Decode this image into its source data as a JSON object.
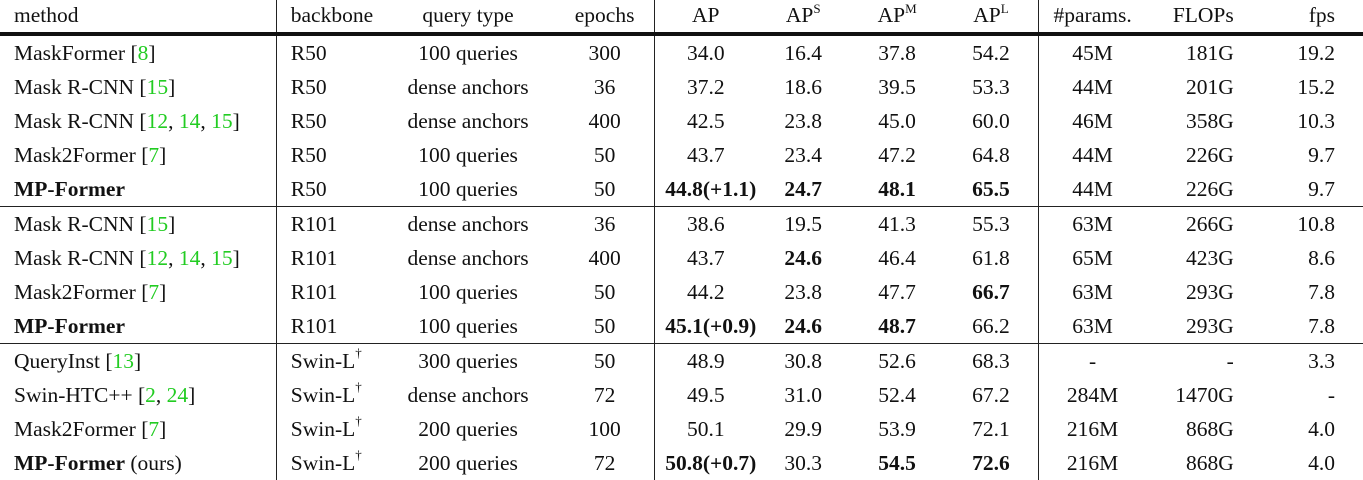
{
  "table": {
    "columns": [
      "method",
      "backbone",
      "query type",
      "epochs",
      "AP",
      "AP^S",
      "AP^M",
      "AP^L",
      "#params.",
      "FLOPs",
      "fps"
    ],
    "header": {
      "method": "method",
      "backbone": "backbone",
      "query_type": "query type",
      "epochs": "epochs",
      "ap": "AP",
      "ap_base": "AP",
      "aps_sup": "S",
      "apm_sup": "M",
      "apl_sup": "L",
      "params": "#params.",
      "flops": "FLOPs",
      "fps": "fps"
    },
    "citation_color": "#22cc22",
    "rows": [
      {
        "name": "MaskFormer",
        "cite_pre": " [",
        "cites": [
          "8"
        ],
        "cite_post": "]",
        "suffix": "",
        "bold_name": false,
        "backbone": "R50",
        "dagger": false,
        "query": "100 queries",
        "epochs": "300",
        "ap": "34.0",
        "ap_bold": false,
        "aps": "16.4",
        "aps_bold": false,
        "apm": "37.8",
        "apm_bold": false,
        "apl": "54.2",
        "apl_bold": false,
        "params": "45M",
        "flops": "181G",
        "fps": "19.2"
      },
      {
        "name": "Mask R-CNN",
        "cite_pre": " [",
        "cites": [
          "15"
        ],
        "cite_post": "]",
        "suffix": "",
        "bold_name": false,
        "backbone": "R50",
        "dagger": false,
        "query": "dense anchors",
        "epochs": "36",
        "ap": "37.2",
        "ap_bold": false,
        "aps": "18.6",
        "aps_bold": false,
        "apm": "39.5",
        "apm_bold": false,
        "apl": "53.3",
        "apl_bold": false,
        "params": "44M",
        "flops": "201G",
        "fps": "15.2"
      },
      {
        "name": "Mask R-CNN",
        "cite_pre": " [",
        "cites": [
          "12",
          "14",
          "15"
        ],
        "cite_post": "]",
        "suffix": "",
        "bold_name": false,
        "backbone": "R50",
        "dagger": false,
        "query": "dense anchors",
        "epochs": "400",
        "ap": "42.5",
        "ap_bold": false,
        "aps": "23.8",
        "aps_bold": false,
        "apm": "45.0",
        "apm_bold": false,
        "apl": "60.0",
        "apl_bold": false,
        "params": "46M",
        "flops": "358G",
        "fps": "10.3"
      },
      {
        "name": "Mask2Former",
        "cite_pre": " [",
        "cites": [
          "7"
        ],
        "cite_post": "]",
        "suffix": "",
        "bold_name": false,
        "backbone": "R50",
        "dagger": false,
        "query": "100 queries",
        "epochs": "50",
        "ap": "43.7",
        "ap_bold": false,
        "aps": "23.4",
        "aps_bold": false,
        "apm": "47.2",
        "apm_bold": false,
        "apl": "64.8",
        "apl_bold": false,
        "params": "44M",
        "flops": "226G",
        "fps": "9.7"
      },
      {
        "name": "MP-Former",
        "cite_pre": "",
        "cites": [],
        "cite_post": "",
        "suffix": "",
        "bold_name": true,
        "backbone": "R50",
        "dagger": false,
        "query": "100 queries",
        "epochs": "50",
        "ap": "44.8(+1.1)",
        "ap_bold": true,
        "aps": "24.7",
        "aps_bold": true,
        "apm": "48.1",
        "apm_bold": true,
        "apl": "65.5",
        "apl_bold": true,
        "params": "44M",
        "flops": "226G",
        "fps": "9.7",
        "group_end": true
      },
      {
        "name": "Mask R-CNN",
        "cite_pre": " [",
        "cites": [
          "15"
        ],
        "cite_post": "]",
        "suffix": "",
        "bold_name": false,
        "backbone": "R101",
        "dagger": false,
        "query": "dense anchors",
        "epochs": "36",
        "ap": "38.6",
        "ap_bold": false,
        "aps": "19.5",
        "aps_bold": false,
        "apm": "41.3",
        "apm_bold": false,
        "apl": "55.3",
        "apl_bold": false,
        "params": "63M",
        "flops": "266G",
        "fps": "10.8"
      },
      {
        "name": "Mask R-CNN",
        "cite_pre": " [",
        "cites": [
          "12",
          "14",
          "15"
        ],
        "cite_post": "]",
        "suffix": "",
        "bold_name": false,
        "backbone": "R101",
        "dagger": false,
        "query": "dense anchors",
        "epochs": "400",
        "ap": "43.7",
        "ap_bold": false,
        "aps": "24.6",
        "aps_bold": true,
        "apm": "46.4",
        "apm_bold": false,
        "apl": "61.8",
        "apl_bold": false,
        "params": "65M",
        "flops": "423G",
        "fps": "8.6"
      },
      {
        "name": "Mask2Former",
        "cite_pre": " [",
        "cites": [
          "7"
        ],
        "cite_post": "]",
        "suffix": "",
        "bold_name": false,
        "backbone": "R101",
        "dagger": false,
        "query": "100 queries",
        "epochs": "50",
        "ap": "44.2",
        "ap_bold": false,
        "aps": "23.8",
        "aps_bold": false,
        "apm": "47.7",
        "apm_bold": false,
        "apl": "66.7",
        "apl_bold": true,
        "params": "63M",
        "flops": "293G",
        "fps": "7.8"
      },
      {
        "name": "MP-Former",
        "cite_pre": "",
        "cites": [],
        "cite_post": "",
        "suffix": "",
        "bold_name": true,
        "backbone": "R101",
        "dagger": false,
        "query": "100 queries",
        "epochs": "50",
        "ap": "45.1(+0.9)",
        "ap_bold": true,
        "aps": "24.6",
        "aps_bold": true,
        "apm": "48.7",
        "apm_bold": true,
        "apl": "66.2",
        "apl_bold": false,
        "params": "63M",
        "flops": "293G",
        "fps": "7.8",
        "group_end": true
      },
      {
        "name": "QueryInst",
        "cite_pre": " [",
        "cites": [
          "13"
        ],
        "cite_post": "]",
        "suffix": "",
        "bold_name": false,
        "backbone": "Swin-L",
        "dagger": true,
        "query": "300 queries",
        "epochs": "50",
        "ap": "48.9",
        "ap_bold": false,
        "aps": "30.8",
        "aps_bold": false,
        "apm": "52.6",
        "apm_bold": false,
        "apl": "68.3",
        "apl_bold": false,
        "params": "-",
        "flops": "-",
        "fps": "3.3"
      },
      {
        "name": "Swin-HTC++",
        "cite_pre": " [",
        "cites": [
          "2",
          "24"
        ],
        "cite_post": "]",
        "suffix": "",
        "bold_name": false,
        "backbone": "Swin-L",
        "dagger": true,
        "query": "dense anchors",
        "epochs": "72",
        "ap": "49.5",
        "ap_bold": false,
        "aps": "31.0",
        "aps_bold": false,
        "apm": "52.4",
        "apm_bold": false,
        "apl": "67.2",
        "apl_bold": false,
        "params": "284M",
        "flops": "1470G",
        "fps": "-"
      },
      {
        "name": "Mask2Former",
        "cite_pre": " [",
        "cites": [
          "7"
        ],
        "cite_post": "]",
        "suffix": "",
        "bold_name": false,
        "backbone": "Swin-L",
        "dagger": true,
        "query": "200 queries",
        "epochs": "100",
        "ap": "50.1",
        "ap_bold": false,
        "aps": "29.9",
        "aps_bold": false,
        "apm": "53.9",
        "apm_bold": false,
        "apl": "72.1",
        "apl_bold": false,
        "params": "216M",
        "flops": "868G",
        "fps": "4.0"
      },
      {
        "name": "MP-Former",
        "cite_pre": "",
        "cites": [],
        "cite_post": "",
        "suffix": " (ours)",
        "bold_name": true,
        "backbone": "Swin-L",
        "dagger": true,
        "query": "200 queries",
        "epochs": "72",
        "ap": "50.8(+0.7)",
        "ap_bold": true,
        "aps": "30.3",
        "aps_bold": false,
        "apm": "54.5",
        "apm_bold": true,
        "apl": "72.6",
        "apl_bold": true,
        "params": "216M",
        "flops": "868G",
        "fps": "4.0"
      }
    ],
    "dagger_symbol": "†"
  }
}
